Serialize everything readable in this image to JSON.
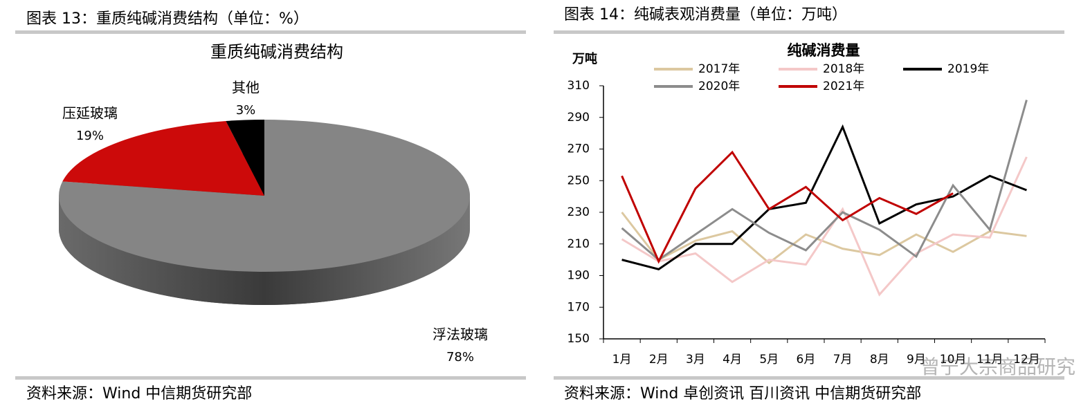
{
  "panels": [
    {
      "caption": "图表 13：重质纯碱消费结构（单位：%）",
      "source": "资料来源：Wind 中信期货研究部"
    },
    {
      "caption": "图表 14：纯碱表观消费量（单位：万吨）",
      "source": "资料来源：Wind 卓创资讯 百川资讯 中信期货研究部"
    }
  ],
  "watermark": "曾宁大宗商品研究",
  "chart_data": [
    {
      "type": "pie",
      "title": "重质纯碱消费结构",
      "categories": [
        "浮法玻璃",
        "压延玻璃",
        "其他"
      ],
      "values": [
        78,
        19,
        3
      ],
      "value_labels": [
        "78%",
        "19%",
        "3%"
      ],
      "colors": [
        "#858585",
        "#cc0a0a",
        "#000000"
      ]
    },
    {
      "type": "line",
      "title": "纯碱消费量",
      "y_label": "万吨",
      "categories": [
        "1月",
        "2月",
        "3月",
        "4月",
        "5月",
        "6月",
        "7月",
        "8月",
        "9月",
        "10月",
        "11月",
        "12月"
      ],
      "ylim": [
        150,
        310
      ],
      "yticks": [
        150,
        170,
        190,
        210,
        230,
        250,
        270,
        290,
        310
      ],
      "series": [
        {
          "name": "2017年",
          "color": "#dcc8a0",
          "values": [
            230,
            200,
            212,
            218,
            198,
            216,
            207,
            203,
            216,
            205,
            218,
            215
          ]
        },
        {
          "name": "2018年",
          "color": "#f4c8c8",
          "values": [
            213,
            199,
            204,
            186,
            200,
            197,
            232,
            178,
            204,
            216,
            214,
            265
          ]
        },
        {
          "name": "2019年",
          "color": "#000000",
          "values": [
            200,
            194,
            210,
            210,
            232,
            236,
            284,
            223,
            235,
            240,
            253,
            244
          ]
        },
        {
          "name": "2020年",
          "color": "#8c8c8c",
          "values": [
            220,
            200,
            216,
            232,
            217,
            206,
            230,
            219,
            202,
            247,
            219,
            301
          ]
        },
        {
          "name": "2021年",
          "color": "#c00000",
          "values": [
            253,
            199,
            245,
            268,
            232,
            246,
            225,
            239,
            229,
            242,
            null,
            null
          ]
        }
      ]
    }
  ]
}
